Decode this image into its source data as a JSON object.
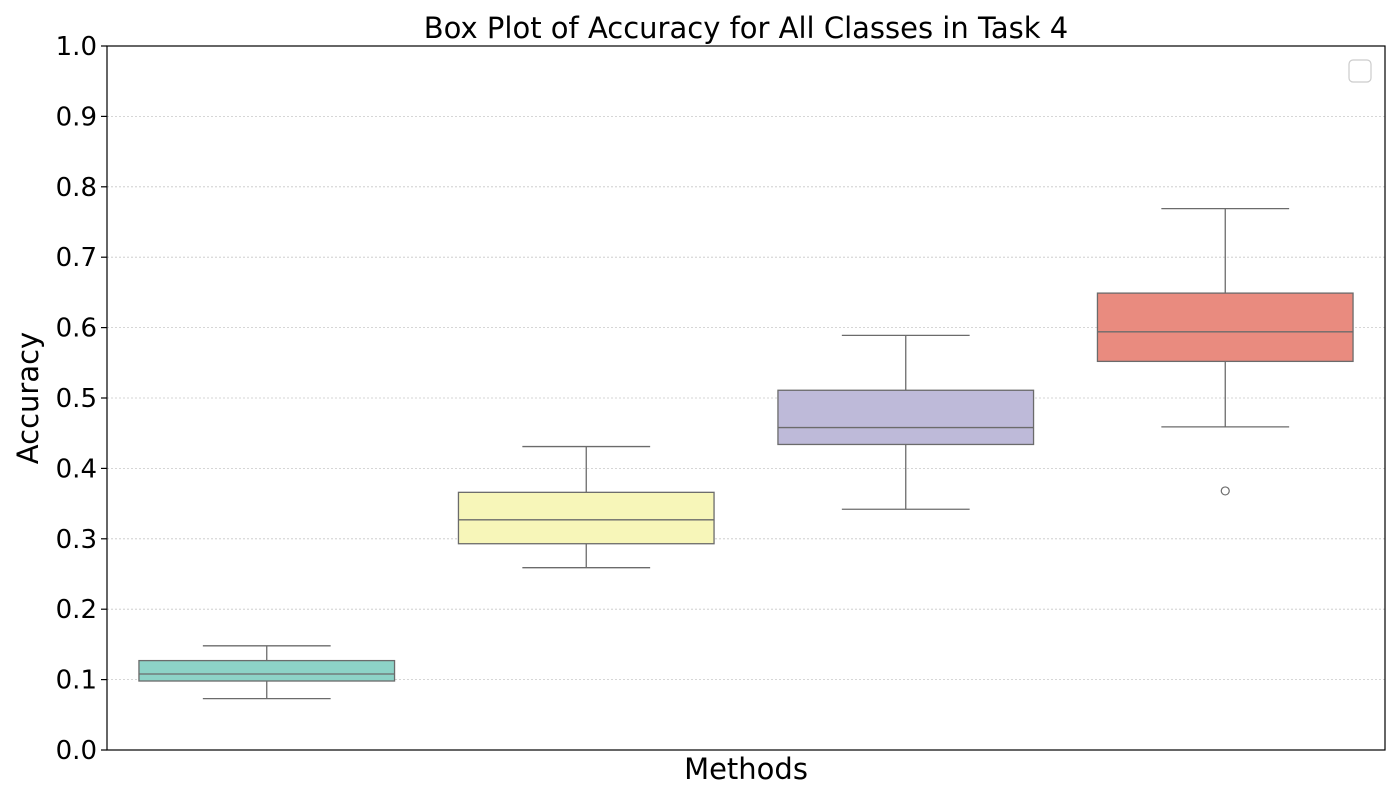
{
  "chart_data": {
    "type": "box",
    "title": "Box Plot of Accuracy for All Classes in Task 4",
    "xlabel": "Methods",
    "ylabel": "Accuracy",
    "ylim": [
      0.0,
      1.0
    ],
    "yticks": [
      "0.0",
      "0.1",
      "0.2",
      "0.3",
      "0.4",
      "0.5",
      "0.6",
      "0.7",
      "0.8",
      "0.9",
      "1.0"
    ],
    "grid": "y-dotted",
    "legend": {
      "placement": "top-right",
      "entries": []
    },
    "series": [
      {
        "color": "#8dd3c7",
        "whisker_low": 0.073,
        "q1": 0.098,
        "median": 0.108,
        "q3": 0.127,
        "whisker_high": 0.148,
        "outliers": []
      },
      {
        "color": "#f7f6b9",
        "whisker_low": 0.259,
        "q1": 0.293,
        "median": 0.327,
        "q3": 0.366,
        "whisker_high": 0.431,
        "outliers": []
      },
      {
        "color": "#bebad9",
        "whisker_low": 0.342,
        "q1": 0.434,
        "median": 0.458,
        "q3": 0.511,
        "whisker_high": 0.589,
        "outliers": []
      },
      {
        "color": "#e98b7f",
        "whisker_low": 0.459,
        "q1": 0.552,
        "median": 0.594,
        "q3": 0.649,
        "whisker_high": 0.769,
        "outliers": [
          0.368
        ]
      }
    ]
  }
}
